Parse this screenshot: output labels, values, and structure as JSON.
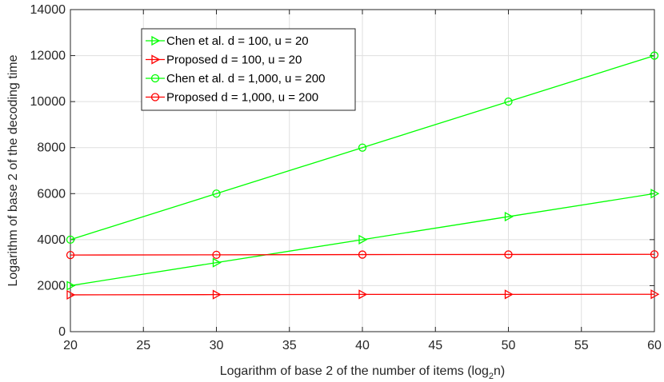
{
  "chart_data": {
    "type": "line",
    "xlabel": "Logarithm of base 2 of the number of items (log",
    "xlabel_sub": "2",
    "xlabel_tail": "n)",
    "ylabel": "Logarithm of base 2 of the decoding time",
    "xlim": [
      20,
      60
    ],
    "ylim": [
      0,
      14000
    ],
    "xticks": [
      20,
      25,
      30,
      35,
      40,
      45,
      50,
      55,
      60
    ],
    "yticks": [
      0,
      2000,
      4000,
      6000,
      8000,
      10000,
      12000,
      14000
    ],
    "grid": true,
    "legend_position": "top-left",
    "x": [
      20,
      30,
      40,
      50,
      60
    ],
    "series": [
      {
        "name": "Chen et al. d = 100, u = 20",
        "color": "#00ff00",
        "marker": "triangle-right",
        "values": [
          2000,
          3000,
          4000,
          5000,
          6000
        ]
      },
      {
        "name": "Proposed   d = 100, u = 20",
        "color": "#ff0000",
        "marker": "triangle-right",
        "values": [
          1600,
          1610,
          1620,
          1620,
          1625
        ]
      },
      {
        "name": "Chen et al.  d = 1,000, u = 200",
        "color": "#00ff00",
        "marker": "circle",
        "values": [
          4000,
          6000,
          8000,
          10000,
          12000
        ]
      },
      {
        "name": "Proposed    d = 1,000, u = 200",
        "color": "#ff0000",
        "marker": "circle",
        "values": [
          3330,
          3340,
          3350,
          3355,
          3360
        ]
      }
    ]
  }
}
